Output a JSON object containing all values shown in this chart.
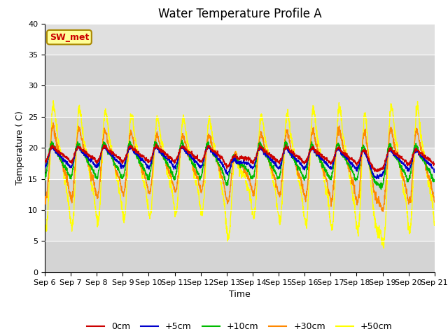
{
  "title": "Water Temperature Profile A",
  "xlabel": "Time",
  "ylabel": "Temperature ( C)",
  "ylim": [
    0,
    40
  ],
  "n_days": 15,
  "pts_per_day": 144,
  "background_color": "#dcdcdc",
  "series_colors": {
    "0cm": "#cc0000",
    "+5cm": "#0000cc",
    "+10cm": "#00bb00",
    "+30cm": "#ff8800",
    "+50cm": "#ffff00"
  },
  "annotation_text": "SW_met",
  "annotation_color": "#cc0000",
  "annotation_bg": "#ffff99",
  "annotation_border": "#aa8800",
  "x_tick_labels": [
    "Sep 6",
    "Sep 7",
    "Sep 8",
    "Sep 9",
    "Sep 10",
    "Sep 11",
    "Sep 12",
    "Sep 13",
    "Sep 14",
    "Sep 15",
    "Sep 16",
    "Sep 17",
    "Sep 18",
    "Sep 19",
    "Sep 20",
    "Sep 21"
  ],
  "grid_color": "#c8c8c8",
  "title_fontsize": 12,
  "axis_label_fontsize": 9,
  "tick_fontsize": 8,
  "legend_fontsize": 9,
  "base_temp": 18.0,
  "amplitudes": [
    1.5,
    2.0,
    3.5,
    6.5,
    11.0
  ],
  "bases": [
    19.0,
    18.5,
    18.0,
    17.5,
    17.0
  ]
}
